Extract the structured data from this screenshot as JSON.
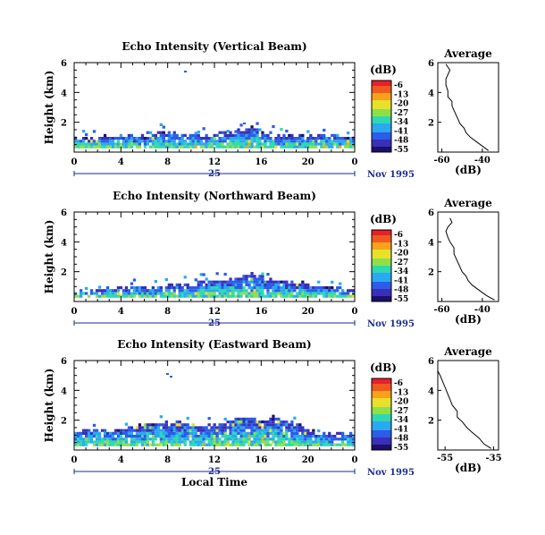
{
  "figure": {
    "date_label": "Nov 1995",
    "day_label": "25",
    "time_label": "Local Time",
    "height_label": "Height (km)",
    "colorbar_unit": "(dB)",
    "profile_title": "Average",
    "profile_xlabel": "(dB)"
  },
  "colorbar": {
    "ticks": [
      "-6",
      "-13",
      "-20",
      "-27",
      "-34",
      "-41",
      "-48",
      "-55"
    ],
    "colors": [
      "#e8202a",
      "#f05a1e",
      "#f7a21a",
      "#e8e02a",
      "#8ee04a",
      "#2fd8b0",
      "#2aa8f0",
      "#2c5ce8",
      "#3a2fb8",
      "#1b0f6b"
    ]
  },
  "chart_data": [
    {
      "type": "heatmap",
      "title": "Echo Intensity (Vertical Beam)",
      "xlabel": "",
      "ylabel": "Height (km)",
      "xlim": [
        0,
        24
      ],
      "ylim": [
        0,
        6
      ],
      "x_ticks": [
        "0",
        "4",
        "8",
        "12",
        "16",
        "20",
        "0"
      ],
      "y_ticks": [
        "2",
        "4",
        "6"
      ],
      "echo_top_km": [
        0.8,
        0.8,
        0.9,
        1.0,
        1.1,
        1.0,
        1.0,
        1.1,
        1.2,
        1.0,
        1.0,
        1.1,
        1.1,
        1.2,
        1.3,
        1.6,
        1.2,
        1.1,
        1.1,
        1.0,
        1.0,
        1.1,
        1.0,
        1.0
      ]
    },
    {
      "type": "heatmap",
      "title": "Echo Intensity (Northward Beam)",
      "xlabel": "",
      "ylabel": "Height (km)",
      "xlim": [
        0,
        24
      ],
      "ylim": [
        0,
        6
      ],
      "x_ticks": [
        "0",
        "4",
        "8",
        "12",
        "16",
        "20",
        "0"
      ],
      "y_ticks": [
        "2",
        "4",
        "6"
      ],
      "echo_top_km": [
        0.6,
        0.6,
        0.7,
        0.8,
        0.8,
        0.9,
        0.9,
        0.9,
        1.0,
        1.1,
        1.1,
        1.2,
        1.3,
        1.4,
        1.5,
        1.8,
        1.5,
        1.4,
        1.3,
        1.2,
        1.1,
        0.9,
        0.8,
        0.7
      ]
    },
    {
      "type": "heatmap",
      "title": "Echo Intensity (Eastward Beam)",
      "xlabel": "Local Time",
      "ylabel": "Height (km)",
      "xlim": [
        0,
        24
      ],
      "ylim": [
        0,
        6
      ],
      "x_ticks": [
        "0",
        "4",
        "8",
        "12",
        "16",
        "20",
        "0"
      ],
      "y_ticks": [
        "2",
        "4",
        "6"
      ],
      "echo_top_km": [
        1.1,
        1.2,
        1.3,
        1.2,
        1.4,
        1.5,
        1.6,
        1.7,
        1.8,
        1.7,
        1.6,
        1.5,
        1.6,
        1.8,
        2.2,
        2.0,
        2.0,
        2.1,
        1.9,
        1.6,
        1.3,
        1.0,
        1.0,
        1.0
      ]
    },
    {
      "type": "line",
      "title": "Average",
      "xlabel": "(dB)",
      "ylabel": "",
      "xlim": [
        -62,
        -32
      ],
      "ylim": [
        0,
        6
      ],
      "x_ticks": [
        "-60",
        "-40"
      ],
      "y_ticks": [
        "2",
        "4",
        "6"
      ],
      "x": [
        -37,
        -40,
        -43,
        -46,
        -48,
        -49,
        -51,
        -52,
        -53,
        -54,
        -55,
        -55,
        -57,
        -57,
        -58,
        -58,
        -57,
        -56,
        -57,
        -58
      ],
      "y": [
        0.1,
        0.4,
        0.7,
        1.0,
        1.3,
        1.6,
        1.9,
        2.2,
        2.5,
        2.8,
        3.1,
        3.4,
        3.7,
        4.1,
        4.5,
        4.9,
        5.2,
        5.5,
        5.7,
        5.9
      ]
    },
    {
      "type": "line",
      "title": "Average",
      "xlabel": "(dB)",
      "ylabel": "",
      "xlim": [
        -62,
        -32
      ],
      "ylim": [
        0,
        6
      ],
      "x_ticks": [
        "-60",
        "-40"
      ],
      "y_ticks": [
        "2",
        "4",
        "6"
      ],
      "x": [
        -34,
        -38,
        -42,
        -45,
        -47,
        -48,
        -50,
        -51,
        -52,
        -53,
        -54,
        -54,
        -56,
        -57,
        -58,
        -57,
        -55,
        -56
      ],
      "y": [
        0.1,
        0.4,
        0.8,
        1.1,
        1.4,
        1.7,
        2.0,
        2.3,
        2.6,
        2.9,
        3.2,
        3.6,
        4.0,
        4.3,
        4.7,
        5.0,
        5.3,
        5.6
      ]
    },
    {
      "type": "line",
      "title": "Average",
      "xlabel": "(dB)",
      "ylabel": "",
      "xlim": [
        -58,
        -33
      ],
      "ylim": [
        0,
        6
      ],
      "x_ticks": [
        "-55",
        "-35"
      ],
      "y_ticks": [
        "2",
        "4",
        "6"
      ],
      "x": [
        -36,
        -39,
        -41,
        -44,
        -46,
        -48,
        -50,
        -50,
        -52,
        -53,
        -54,
        -55,
        -56,
        -57,
        -58
      ],
      "y": [
        0.1,
        0.4,
        0.8,
        1.2,
        1.5,
        1.9,
        2.2,
        2.6,
        3.0,
        3.4,
        3.8,
        4.2,
        4.6,
        5.0,
        5.3
      ]
    }
  ]
}
